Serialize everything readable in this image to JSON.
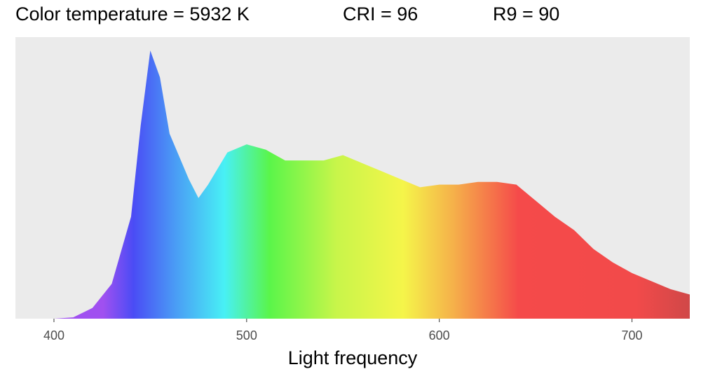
{
  "chart_data": {
    "type": "area",
    "titles": [
      "Color temperature = 5932 K",
      "CRI = 96",
      "R9 = 90"
    ],
    "xlabel": "Light frequency",
    "x": [
      380,
      390,
      400,
      410,
      420,
      430,
      440,
      445,
      450,
      455,
      460,
      470,
      475,
      480,
      490,
      500,
      510,
      520,
      530,
      540,
      550,
      560,
      570,
      580,
      590,
      600,
      610,
      620,
      630,
      640,
      650,
      660,
      670,
      680,
      690,
      700,
      710,
      720,
      730
    ],
    "values": [
      0,
      0,
      0,
      0.005,
      0.04,
      0.13,
      0.38,
      0.72,
      1.0,
      0.9,
      0.69,
      0.52,
      0.45,
      0.5,
      0.62,
      0.65,
      0.63,
      0.59,
      0.59,
      0.59,
      0.61,
      0.58,
      0.55,
      0.52,
      0.49,
      0.5,
      0.5,
      0.51,
      0.51,
      0.5,
      0.44,
      0.38,
      0.33,
      0.26,
      0.21,
      0.17,
      0.14,
      0.11,
      0.09
    ],
    "xlim": [
      380,
      730
    ],
    "xticks": [
      400,
      500,
      600,
      700
    ],
    "ylim": [
      0,
      1.05
    ],
    "panel_color": "#ebebeb"
  }
}
